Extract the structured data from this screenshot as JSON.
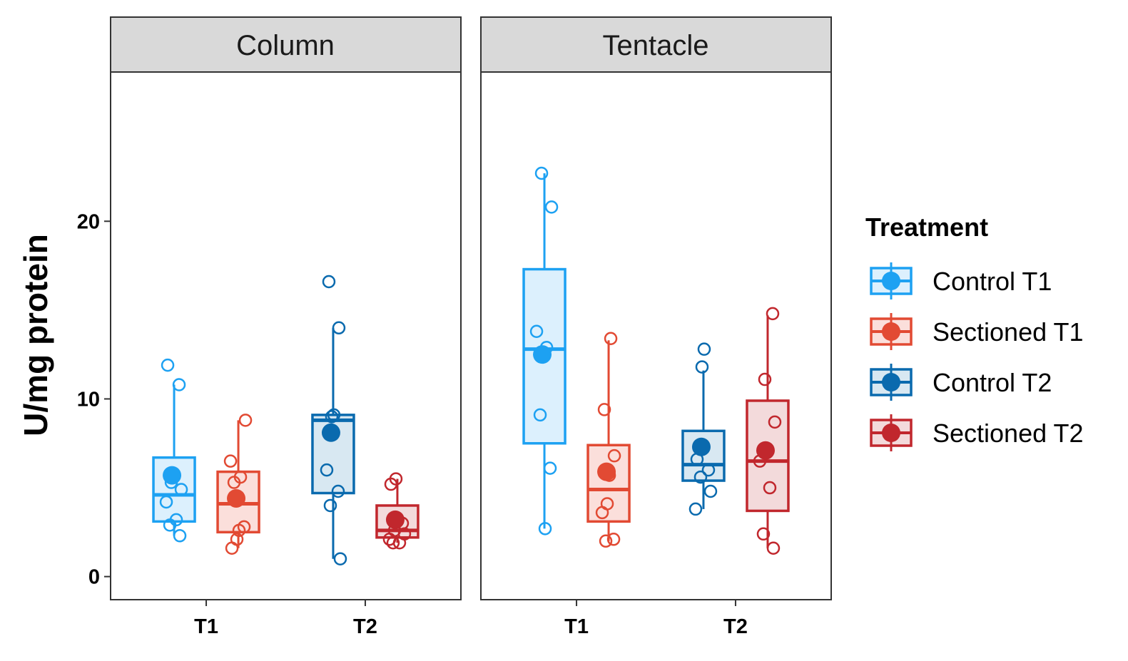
{
  "chart_data": {
    "type": "box",
    "ylabel": "U/mg protein",
    "ylim": [
      -1.3,
      28.4
    ],
    "yticks": [
      0,
      10,
      20
    ],
    "legend": {
      "title": "Treatment",
      "position": "right"
    },
    "facets": [
      "Column",
      "Tentacle"
    ],
    "categories": [
      "T1",
      "T2"
    ],
    "series": [
      {
        "name": "Control T1",
        "color": "#1da1f2",
        "fill": "#dcf0fd",
        "category": "T1",
        "offset": -1
      },
      {
        "name": "Sectioned T1",
        "color": "#e24a33",
        "fill": "#fbdfdb",
        "category": "T1",
        "offset": 1
      },
      {
        "name": "Control T2",
        "color": "#0a6aae",
        "fill": "#d8e8f2",
        "category": "T2",
        "offset": -1
      },
      {
        "name": "Sectioned T2",
        "color": "#c1272d",
        "fill": "#f3dadb",
        "category": "T2",
        "offset": 1
      }
    ],
    "boxes": [
      {
        "facet": "Column",
        "series": "Control T1",
        "whisker_low": 2.3,
        "q1": 3.1,
        "median": 4.6,
        "q3": 6.7,
        "whisker_high": 10.8,
        "mean": 5.7,
        "points": [
          11.9,
          10.8,
          5.3,
          4.9,
          4.2,
          3.2,
          2.9,
          2.3
        ]
      },
      {
        "facet": "Column",
        "series": "Sectioned T1",
        "whisker_low": 1.6,
        "q1": 2.5,
        "median": 4.1,
        "q3": 5.9,
        "whisker_high": 8.8,
        "mean": 4.4,
        "points": [
          8.8,
          6.5,
          5.6,
          5.3,
          2.8,
          2.6,
          2.1,
          1.6
        ]
      },
      {
        "facet": "Column",
        "series": "Control T2",
        "whisker_low": 1.0,
        "q1": 4.7,
        "median": 8.8,
        "q3": 9.1,
        "whisker_high": 14.0,
        "mean": 8.1,
        "points": [
          16.6,
          14.0,
          9.1,
          9.0,
          6.0,
          4.8,
          4.0,
          1.0
        ]
      },
      {
        "facet": "Column",
        "series": "Sectioned T2",
        "whisker_low": 1.9,
        "q1": 2.2,
        "median": 2.6,
        "q3": 4.0,
        "whisker_high": 5.5,
        "mean": 3.2,
        "points": [
          5.5,
          5.2,
          3.0,
          2.6,
          2.4,
          2.1,
          1.9,
          1.9
        ]
      },
      {
        "facet": "Tentacle",
        "series": "Control T1",
        "whisker_low": 2.7,
        "q1": 7.5,
        "median": 12.8,
        "q3": 17.3,
        "whisker_high": 22.7,
        "mean": 12.5,
        "points": [
          22.7,
          20.8,
          13.8,
          12.9,
          9.1,
          6.1,
          2.7
        ]
      },
      {
        "facet": "Tentacle",
        "series": "Sectioned T1",
        "whisker_low": 2.0,
        "q1": 3.1,
        "median": 4.9,
        "q3": 7.4,
        "whisker_high": 13.3,
        "mean": 5.9,
        "points": [
          13.4,
          9.4,
          6.8,
          5.7,
          4.1,
          3.6,
          2.1,
          2.0
        ]
      },
      {
        "facet": "Tentacle",
        "series": "Control T2",
        "whisker_low": 3.8,
        "q1": 5.4,
        "median": 6.3,
        "q3": 8.2,
        "whisker_high": 11.6,
        "mean": 7.3,
        "points": [
          12.8,
          11.8,
          6.6,
          6.0,
          5.6,
          4.8,
          3.8
        ]
      },
      {
        "facet": "Tentacle",
        "series": "Sectioned T2",
        "whisker_low": 1.6,
        "q1": 3.7,
        "median": 6.5,
        "q3": 9.9,
        "whisker_high": 14.7,
        "mean": 7.1,
        "points": [
          14.8,
          11.1,
          8.7,
          6.5,
          5.0,
          2.4,
          1.6
        ]
      }
    ]
  }
}
